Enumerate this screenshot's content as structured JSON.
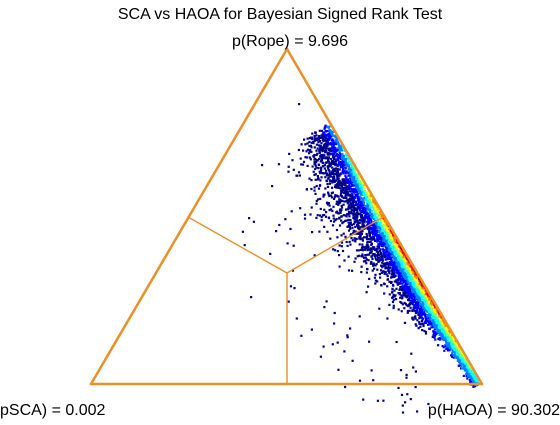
{
  "chart_data": {
    "type": "scatter",
    "title": "SCA vs HAOA for Bayesian Signed Rank Test",
    "vertices": {
      "top": "p(Rope) = 9.696",
      "left": "pSCA) = 0.002",
      "right": "p(HAOA) = 90.302"
    },
    "probabilities": {
      "rope": 9.696,
      "sca": 0.002,
      "haoa": 90.302
    },
    "density_colormap": [
      "#00008f",
      "#0000ff",
      "#0080ff",
      "#00ffff",
      "#80ff80",
      "#ffff00",
      "#ff8000",
      "#ff0000",
      "#800000"
    ],
    "grid": false
  },
  "colors": {
    "triangle": "#e8902a",
    "background": "#ffffff"
  }
}
